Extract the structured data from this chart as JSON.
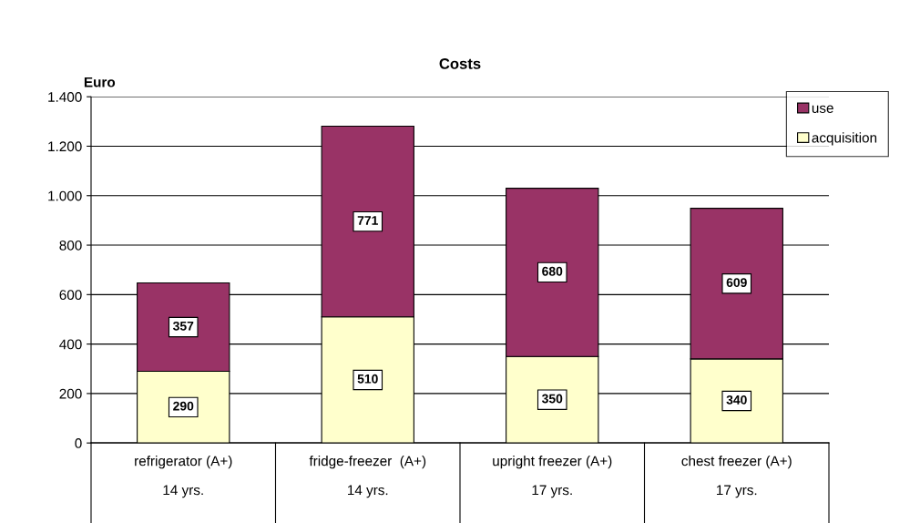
{
  "chart_data": {
    "type": "bar",
    "title": "Costs",
    "ylabel": "Euro",
    "stacked": true,
    "categories": [
      "refrigerator (A+)\n14 yrs.",
      "fridge-freezer  (A+)\n14 yrs.",
      "upright freezer (A+)\n17 yrs.",
      "chest freezer (A+)\n17 yrs."
    ],
    "series": [
      {
        "name": "acquisition",
        "color": "#ffffcc",
        "values": [
          290,
          510,
          350,
          340
        ]
      },
      {
        "name": "use",
        "color": "#993366",
        "values": [
          357,
          771,
          680,
          609
        ]
      }
    ],
    "ylim": [
      0,
      1400
    ],
    "yticks": [
      0,
      200,
      400,
      600,
      800,
      {
        "value": 1000,
        "label": "1.000"
      },
      {
        "value": 1200,
        "label": "1.200"
      },
      {
        "value": 1400,
        "label": "1.400"
      }
    ],
    "grid": "y",
    "legend": "top right",
    "data_labels": true
  }
}
